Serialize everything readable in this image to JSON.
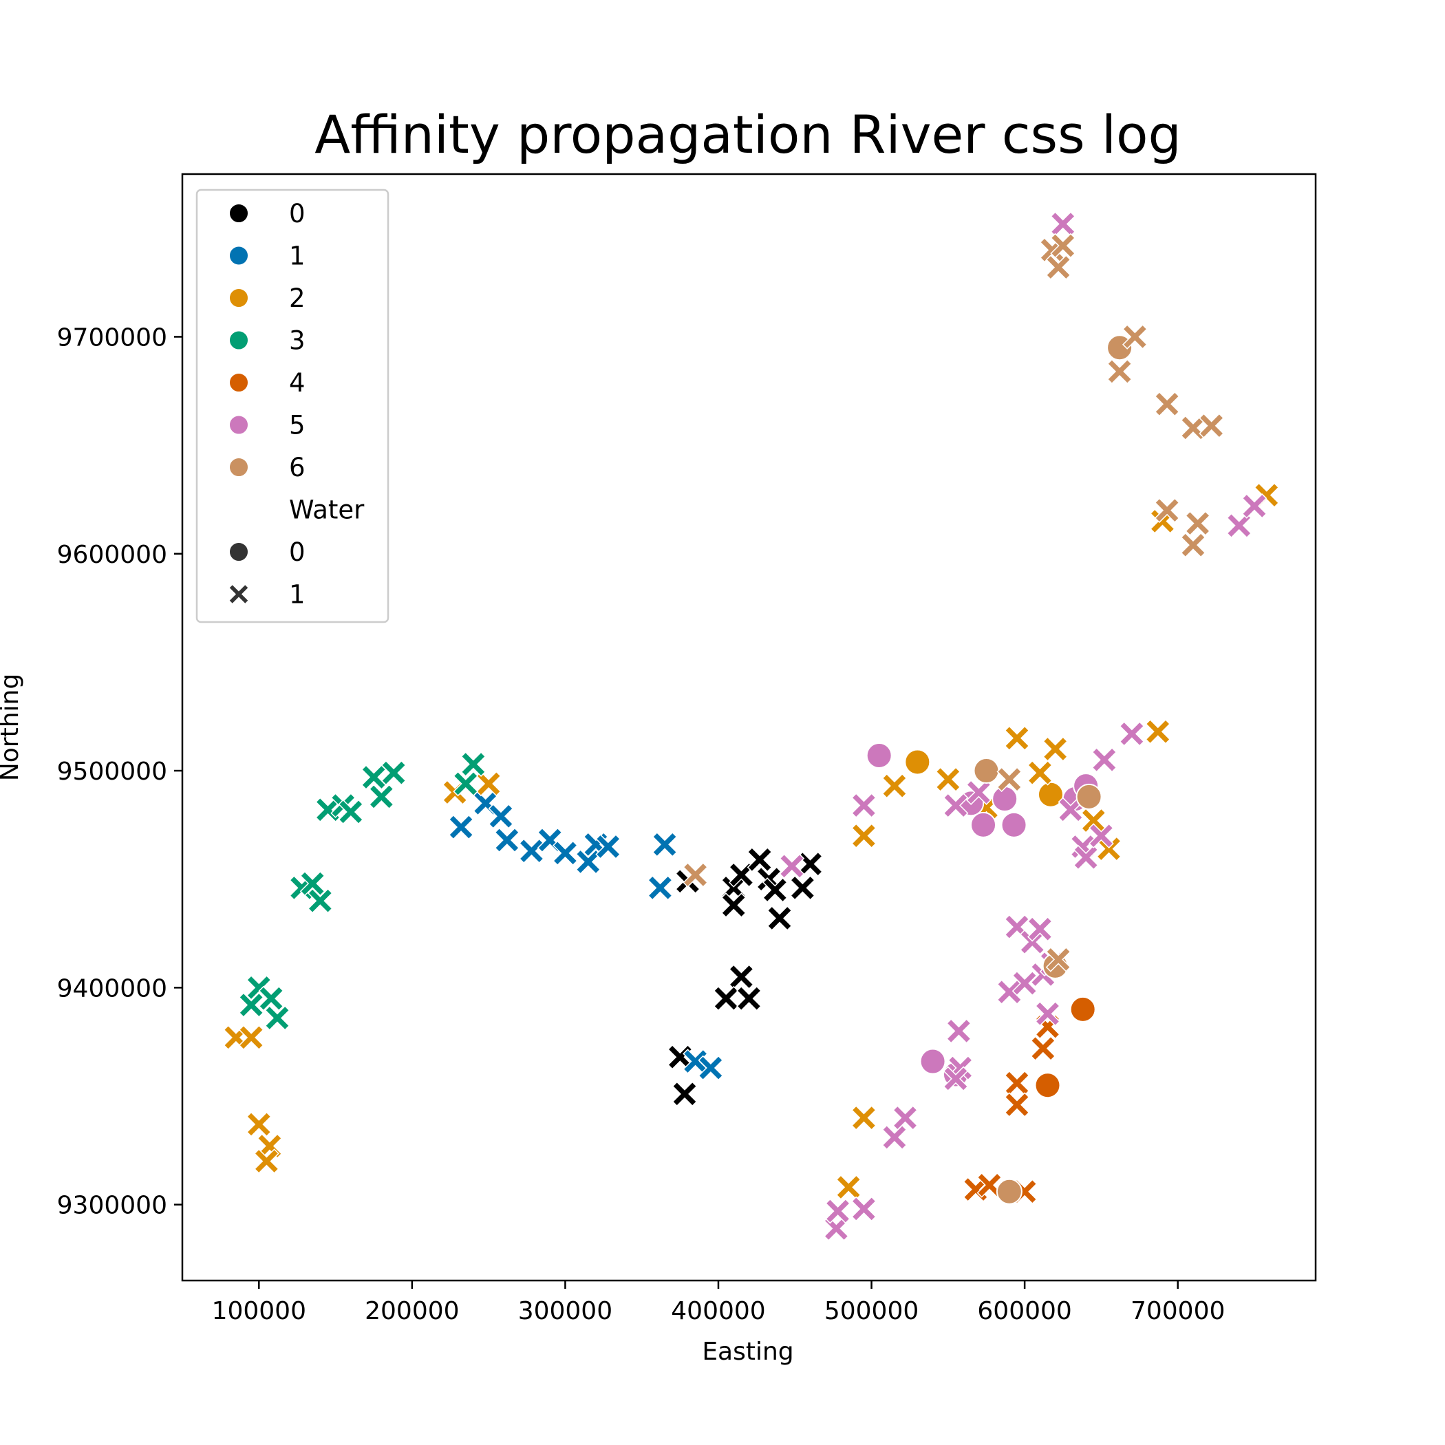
{
  "chart_data": {
    "type": "scatter",
    "title": "Affinity propagation River css log",
    "xlabel": "Easting",
    "ylabel": "Northing",
    "xlim": [
      50000,
      790000
    ],
    "ylim": [
      9265000,
      9775000
    ],
    "x_ticks": [
      100000,
      200000,
      300000,
      400000,
      500000,
      600000,
      700000
    ],
    "y_ticks": [
      9300000,
      9400000,
      9500000,
      9600000,
      9700000
    ],
    "x_tick_labels": [
      "100000",
      "200000",
      "300000",
      "400000",
      "500000",
      "600000",
      "700000"
    ],
    "y_tick_labels": [
      "9300000",
      "9400000",
      "9500000",
      "9600000",
      "9700000"
    ],
    "grid": false,
    "legend_position": "top-left",
    "hue_title": "",
    "style_title": "Water",
    "colors": {
      "0": "#000000",
      "1": "#0173b2",
      "2": "#de8f05",
      "3": "#029e73",
      "4": "#d55e00",
      "5": "#cc78bc",
      "6": "#ca9161"
    },
    "legend_hue": [
      {
        "label": "0",
        "cluster": "0"
      },
      {
        "label": "1",
        "cluster": "1"
      },
      {
        "label": "2",
        "cluster": "2"
      },
      {
        "label": "3",
        "cluster": "3"
      },
      {
        "label": "4",
        "cluster": "4"
      },
      {
        "label": "5",
        "cluster": "5"
      },
      {
        "label": "6",
        "cluster": "6"
      }
    ],
    "legend_style": [
      {
        "label": "0",
        "marker": "circle"
      },
      {
        "label": "1",
        "marker": "x"
      }
    ],
    "marker_by_water": {
      "0": "circle",
      "1": "x"
    },
    "series": [
      {
        "cluster": "0",
        "water": 1,
        "points": [
          [
            380000,
            9449000
          ],
          [
            410000,
            9446000
          ],
          [
            415000,
            9452000
          ],
          [
            427000,
            9459000
          ],
          [
            433000,
            9450000
          ],
          [
            437000,
            9445000
          ],
          [
            440000,
            9432000
          ],
          [
            455000,
            9446000
          ],
          [
            460000,
            9457000
          ],
          [
            410000,
            9438000
          ],
          [
            415000,
            9405000
          ],
          [
            405000,
            9395000
          ],
          [
            420000,
            9395000
          ],
          [
            375000,
            9368000
          ],
          [
            378000,
            9351000
          ]
        ]
      },
      {
        "cluster": "1",
        "water": 1,
        "points": [
          [
            232000,
            9474000
          ],
          [
            248000,
            9485000
          ],
          [
            258000,
            9479000
          ],
          [
            262000,
            9468000
          ],
          [
            278000,
            9463000
          ],
          [
            290000,
            9468000
          ],
          [
            300000,
            9462000
          ],
          [
            315000,
            9458000
          ],
          [
            320000,
            9466000
          ],
          [
            328000,
            9465000
          ],
          [
            365000,
            9466000
          ],
          [
            362000,
            9446000
          ],
          [
            385000,
            9366000
          ],
          [
            395000,
            9363000
          ]
        ]
      },
      {
        "cluster": "2",
        "water": 0,
        "points": [
          [
            530000,
            9504000
          ],
          [
            617000,
            9489000
          ]
        ]
      },
      {
        "cluster": "2",
        "water": 1,
        "points": [
          [
            85000,
            9377000
          ],
          [
            95000,
            9377000
          ],
          [
            100000,
            9337000
          ],
          [
            107000,
            9327000
          ],
          [
            105000,
            9320000
          ],
          [
            228000,
            9490000
          ],
          [
            250000,
            9494000
          ],
          [
            495000,
            9470000
          ],
          [
            515000,
            9493000
          ],
          [
            550000,
            9496000
          ],
          [
            575000,
            9483000
          ],
          [
            595000,
            9515000
          ],
          [
            610000,
            9499000
          ],
          [
            620000,
            9510000
          ],
          [
            645000,
            9477000
          ],
          [
            655000,
            9464000
          ],
          [
            687000,
            9518000
          ],
          [
            495000,
            9340000
          ],
          [
            485000,
            9308000
          ],
          [
            690000,
            9615000
          ],
          [
            758000,
            9627000
          ]
        ]
      },
      {
        "cluster": "3",
        "water": 1,
        "points": [
          [
            95000,
            9392000
          ],
          [
            100000,
            9400000
          ],
          [
            108000,
            9395000
          ],
          [
            112000,
            9386000
          ],
          [
            128000,
            9446000
          ],
          [
            135000,
            9448000
          ],
          [
            140000,
            9440000
          ],
          [
            145000,
            9482000
          ],
          [
            155000,
            9484000
          ],
          [
            160000,
            9481000
          ],
          [
            175000,
            9497000
          ],
          [
            180000,
            9488000
          ],
          [
            188000,
            9499000
          ],
          [
            235000,
            9494000
          ],
          [
            240000,
            9503000
          ]
        ]
      },
      {
        "cluster": "4",
        "water": 0,
        "points": [
          [
            615000,
            9355000
          ],
          [
            638000,
            9390000
          ]
        ]
      },
      {
        "cluster": "4",
        "water": 1,
        "points": [
          [
            595000,
            9356000
          ],
          [
            595000,
            9346000
          ],
          [
            612000,
            9372000
          ],
          [
            615000,
            9382000
          ],
          [
            568000,
            9307000
          ],
          [
            577000,
            9309000
          ],
          [
            600000,
            9306000
          ]
        ]
      },
      {
        "cluster": "5",
        "water": 0,
        "points": [
          [
            505000,
            9507000
          ],
          [
            565000,
            9485000
          ],
          [
            573000,
            9475000
          ],
          [
            587000,
            9487000
          ],
          [
            593000,
            9475000
          ],
          [
            633000,
            9487000
          ],
          [
            640000,
            9493000
          ],
          [
            540000,
            9366000
          ],
          [
            555000,
            9360000
          ]
        ]
      },
      {
        "cluster": "5",
        "water": 1,
        "points": [
          [
            625000,
            9752000
          ],
          [
            495000,
            9484000
          ],
          [
            555000,
            9484000
          ],
          [
            570000,
            9490000
          ],
          [
            630000,
            9482000
          ],
          [
            638000,
            9465000
          ],
          [
            640000,
            9460000
          ],
          [
            650000,
            9470000
          ],
          [
            652000,
            9505000
          ],
          [
            670000,
            9517000
          ],
          [
            740000,
            9613000
          ],
          [
            750000,
            9622000
          ],
          [
            595000,
            9428000
          ],
          [
            605000,
            9421000
          ],
          [
            610000,
            9427000
          ],
          [
            590000,
            9398000
          ],
          [
            600000,
            9402000
          ],
          [
            612000,
            9406000
          ],
          [
            618000,
            9411000
          ],
          [
            615000,
            9388000
          ],
          [
            557000,
            9380000
          ],
          [
            558000,
            9363000
          ],
          [
            555000,
            9358000
          ],
          [
            515000,
            9331000
          ],
          [
            522000,
            9340000
          ],
          [
            477000,
            9289000
          ],
          [
            478000,
            9297000
          ],
          [
            495000,
            9298000
          ],
          [
            448000,
            9456000
          ]
        ]
      },
      {
        "cluster": "6",
        "water": 0,
        "points": [
          [
            662000,
            9695000
          ],
          [
            575000,
            9500000
          ],
          [
            642000,
            9488000
          ],
          [
            590000,
            9306000
          ],
          [
            620000,
            9410000
          ]
        ]
      },
      {
        "cluster": "6",
        "water": 1,
        "points": [
          [
            618000,
            9740000
          ],
          [
            625000,
            9742000
          ],
          [
            622000,
            9732000
          ],
          [
            672000,
            9700000
          ],
          [
            662000,
            9684000
          ],
          [
            693000,
            9669000
          ],
          [
            710000,
            9658000
          ],
          [
            722000,
            9659000
          ],
          [
            693000,
            9620000
          ],
          [
            713000,
            9614000
          ],
          [
            710000,
            9604000
          ],
          [
            590000,
            9496000
          ],
          [
            385000,
            9452000
          ],
          [
            622000,
            9413000
          ]
        ]
      }
    ]
  }
}
